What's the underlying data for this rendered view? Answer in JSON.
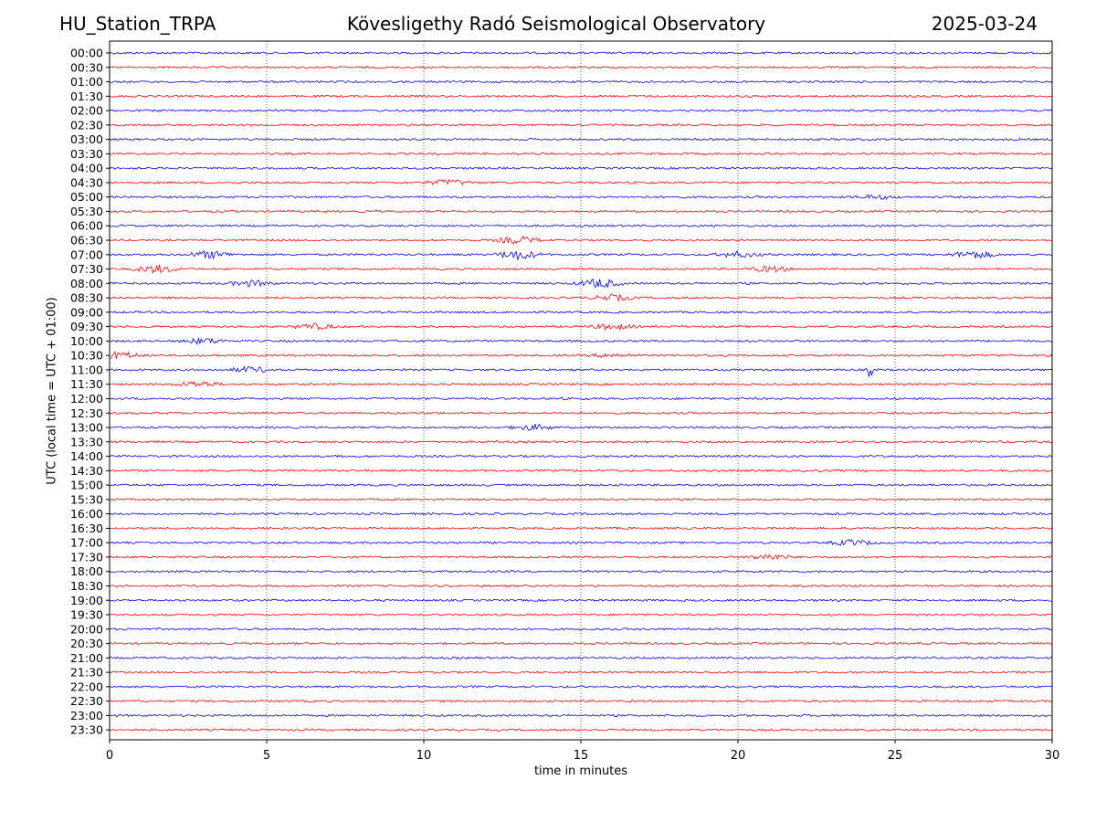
{
  "header": {
    "station": "HU_Station_TRPA",
    "observatory": "Kövesligethy Radó Seismological Observatory",
    "date": "2025-03-24"
  },
  "chart_data": {
    "type": "line",
    "title": "Kövesligethy Radó Seismological Observatory",
    "xlabel": "time in minutes",
    "ylabel": "UTC (local time = UTC + 01:00)",
    "xlim": [
      0,
      30
    ],
    "xticks": [
      0,
      5,
      10,
      15,
      20,
      25,
      30
    ],
    "grid": "vertical dotted at x = 5, 10, 15, 20, 25",
    "colors": {
      "even_hour_rows": "#0000ff",
      "half_hour_rows": "#ff0000",
      "axes": "#000000",
      "grid": "#000000"
    },
    "rows": [
      "00:00",
      "00:30",
      "01:00",
      "01:30",
      "02:00",
      "02:30",
      "03:00",
      "03:30",
      "04:00",
      "04:30",
      "05:00",
      "05:30",
      "06:00",
      "06:30",
      "07:00",
      "07:30",
      "08:00",
      "08:30",
      "09:00",
      "09:30",
      "10:00",
      "10:30",
      "11:00",
      "11:30",
      "12:00",
      "12:30",
      "13:00",
      "13:30",
      "14:00",
      "14:30",
      "15:00",
      "15:30",
      "16:00",
      "16:30",
      "17:00",
      "17:30",
      "18:00",
      "18:30",
      "19:00",
      "19:30",
      "20:00",
      "20:30",
      "21:00",
      "21:30",
      "22:00",
      "22:30",
      "23:00",
      "23:30"
    ],
    "events": [
      {
        "row": "04:30",
        "x": 10.8,
        "amplitude": 3
      },
      {
        "row": "05:00",
        "x": 24.4,
        "amplitude": 2
      },
      {
        "row": "06:30",
        "x": 13.0,
        "amplitude": 4
      },
      {
        "row": "07:00",
        "x": 3.2,
        "amplitude": 4
      },
      {
        "row": "07:00",
        "x": 13.0,
        "amplitude": 5
      },
      {
        "row": "07:00",
        "x": 20.0,
        "amplitude": 3
      },
      {
        "row": "07:00",
        "x": 27.5,
        "amplitude": 4
      },
      {
        "row": "07:30",
        "x": 1.5,
        "amplitude": 4
      },
      {
        "row": "07:30",
        "x": 21.0,
        "amplitude": 3
      },
      {
        "row": "08:00",
        "x": 4.5,
        "amplitude": 3
      },
      {
        "row": "08:00",
        "x": 15.6,
        "amplitude": 5
      },
      {
        "row": "08:30",
        "x": 16.0,
        "amplitude": 3
      },
      {
        "row": "09:30",
        "x": 6.5,
        "amplitude": 3
      },
      {
        "row": "09:30",
        "x": 16.0,
        "amplitude": 3
      },
      {
        "row": "10:00",
        "x": 3.0,
        "amplitude": 3
      },
      {
        "row": "10:30",
        "x": 0.3,
        "amplitude": 4
      },
      {
        "row": "10:30",
        "x": 16.0,
        "amplitude": 2
      },
      {
        "row": "11:00",
        "x": 4.5,
        "amplitude": 3
      },
      {
        "row": "11:00",
        "x": 24.2,
        "amplitude": 9
      },
      {
        "row": "11:30",
        "x": 2.8,
        "amplitude": 3
      },
      {
        "row": "13:00",
        "x": 13.5,
        "amplitude": 3
      },
      {
        "row": "17:00",
        "x": 23.6,
        "amplitude": 3
      },
      {
        "row": "17:30",
        "x": 21.0,
        "amplitude": 3
      }
    ]
  }
}
